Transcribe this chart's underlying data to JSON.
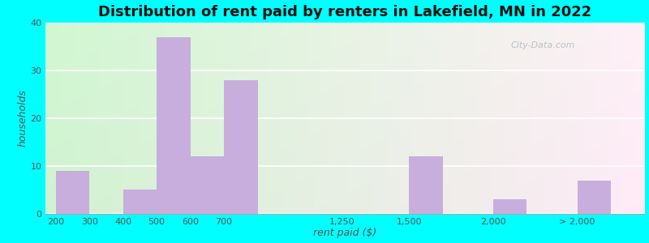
{
  "title": "Distribution of rent paid by renters in Lakefield, MN in 2022",
  "xlabel": "rent paid ($)",
  "ylabel": "households",
  "bar_color": "#c8aedd",
  "background_outer": "#00ffff",
  "ylim": [
    0,
    40
  ],
  "yticks": [
    0,
    10,
    20,
    30,
    40
  ],
  "tick_labels": [
    "200",
    "300",
    "400",
    "500",
    "600",
    "700",
    "1,250",
    "1,500",
    "2,000",
    "> 2,000"
  ],
  "values": [
    9,
    0,
    5,
    37,
    12,
    28,
    0,
    12,
    3,
    7
  ],
  "title_fontsize": 13,
  "axis_label_fontsize": 9,
  "tick_fontsize": 8,
  "watermark_text": "City-Data.com"
}
